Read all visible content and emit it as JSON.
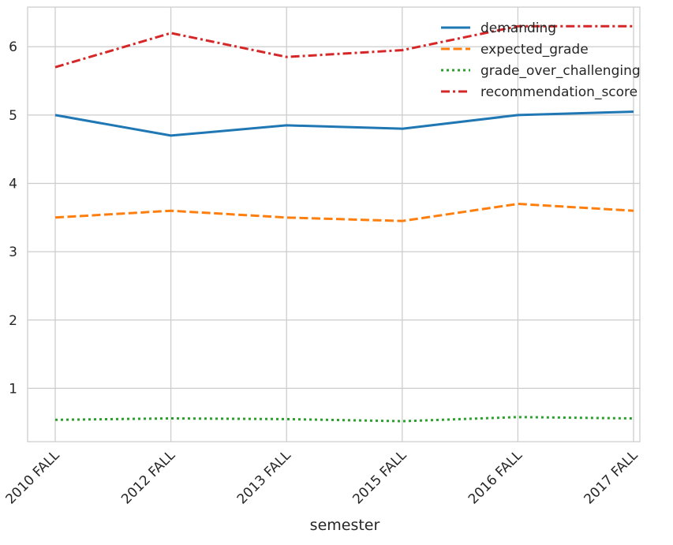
{
  "chart_data": {
    "type": "line",
    "categories": [
      "2010 FALL",
      "2012 FALL",
      "2013 FALL",
      "2015 FALL",
      "2016 FALL",
      "2017 FALL"
    ],
    "xlabel": "semester",
    "ylabel": "",
    "ylim": [
      0.22,
      6.58
    ],
    "yticks": [
      1,
      2,
      3,
      4,
      5,
      6
    ],
    "grid": true,
    "legend": "top-right",
    "series": [
      {
        "name": "demanding",
        "color": "#1f77b4",
        "dash": "solid",
        "values": [
          5.0,
          4.7,
          4.85,
          4.8,
          5.0,
          5.05
        ]
      },
      {
        "name": "expected_grade",
        "color": "#ff7f0e",
        "dash": "dashed",
        "values": [
          3.5,
          3.6,
          3.5,
          3.45,
          3.7,
          3.6
        ]
      },
      {
        "name": "grade_over_challenging",
        "color": "#2ca02c",
        "dash": "dotted",
        "values": [
          0.54,
          0.56,
          0.55,
          0.52,
          0.58,
          0.56
        ]
      },
      {
        "name": "recommendation_score",
        "color": "#d62728",
        "dash": "dashdot",
        "values": [
          5.7,
          6.2,
          5.85,
          5.95,
          6.3,
          6.3
        ]
      }
    ]
  }
}
